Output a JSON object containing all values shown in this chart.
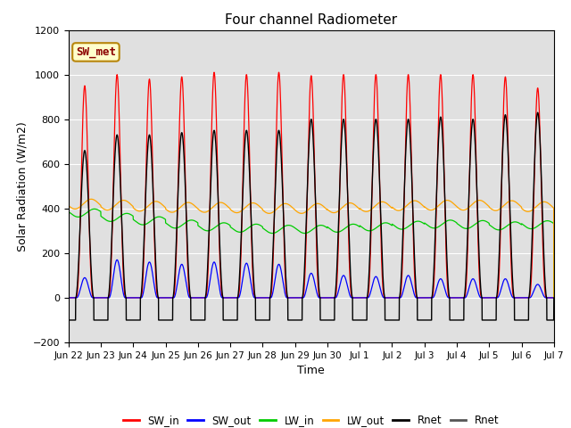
{
  "title": "Four channel Radiometer",
  "xlabel": "Time",
  "ylabel": "Solar Radiation (W/m2)",
  "ylim": [
    -200,
    1200
  ],
  "annotation": "SW_met",
  "x_tick_labels": [
    "Jun 22",
    "Jun 23",
    "Jun 24",
    "Jun 25",
    "Jun 26",
    "Jun 27",
    "Jun 28",
    "Jun 29",
    "Jun 30",
    "Jul 1",
    "Jul 2",
    "Jul 3",
    "Jul 4",
    "Jul 5",
    "Jul 6",
    "Jul 7"
  ],
  "background_color": "#ffffff",
  "plot_bg_color": "#e0e0e0",
  "legend_entries": [
    "SW_in",
    "SW_out",
    "LW_in",
    "LW_out",
    "Rnet",
    "Rnet"
  ],
  "legend_colors": [
    "#ff0000",
    "#0000ff",
    "#00cc00",
    "#ffa500",
    "#000000",
    "#555555"
  ],
  "total_days": 15,
  "sw_in_peaks": [
    950,
    1000,
    980,
    990,
    1010,
    1000,
    1010,
    995,
    1000,
    1000,
    1000,
    1000,
    1000,
    990,
    940
  ],
  "sw_out_peaks": [
    90,
    170,
    160,
    150,
    160,
    155,
    150,
    110,
    100,
    95,
    100,
    85,
    85,
    85,
    60
  ],
  "lw_in_bases": [
    380,
    360,
    345,
    330,
    318,
    312,
    307,
    307,
    312,
    318,
    325,
    330,
    328,
    322,
    327
  ],
  "lw_out_bases": [
    420,
    415,
    410,
    405,
    405,
    403,
    400,
    400,
    403,
    408,
    413,
    415,
    415,
    413,
    408
  ],
  "rnet_peaks": [
    660,
    730,
    730,
    740,
    750,
    750,
    750,
    800,
    800,
    800,
    800,
    810,
    800,
    820,
    830
  ],
  "rnet_night": -100
}
